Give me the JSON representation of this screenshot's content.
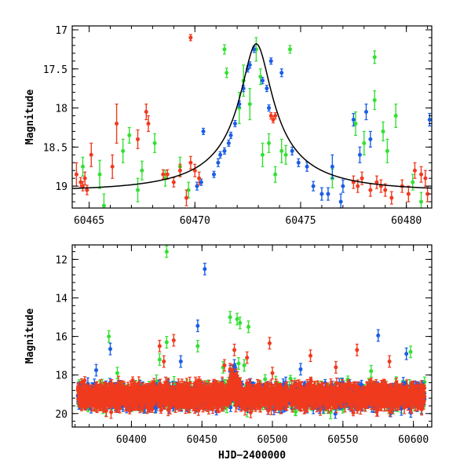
{
  "colors": {
    "green": "#33e033",
    "blue": "#1a5ee6",
    "red": "#f03a1e",
    "model": "#000000"
  },
  "chart_data": [
    {
      "type": "scatter",
      "panel": "top",
      "xlabel": "",
      "ylabel": "Magnitude",
      "xlim": [
        60464.2,
        60481.2
      ],
      "ylim": [
        19.28,
        16.95
      ],
      "y_inverted": true,
      "grid": false,
      "xticks": [
        60465,
        60470,
        60475,
        60480
      ],
      "xtick_labels": [
        "60465",
        "60470",
        "60475",
        "60480"
      ],
      "yticks": [
        17,
        17.5,
        18,
        18.5,
        19
      ],
      "ytick_labels": [
        "17",
        "17.5",
        "18",
        "18.5",
        "19"
      ],
      "model_curve": {
        "baseline": 19.06,
        "peak_mag": 17.18,
        "t0": 60472.9,
        "u0": 0.14,
        "tE": 5.2
      },
      "series": [
        {
          "color": "#33e033",
          "points": [
            [
              60464.7,
              18.75,
              0.12
            ],
            [
              60465.5,
              18.85,
              0.18
            ],
            [
              60465.7,
              19.25,
              0.15
            ],
            [
              60466.6,
              18.55,
              0.15
            ],
            [
              60467.3,
              19.05,
              0.15
            ],
            [
              60467.5,
              18.8,
              0.12
            ],
            [
              60468.1,
              18.45,
              0.12
            ],
            [
              60468.6,
              18.9,
              0.1
            ],
            [
              60469.3,
              18.75,
              0.12
            ],
            [
              60469.7,
              19.05,
              0.1
            ],
            [
              60472.1,
              18.0,
              0.2
            ],
            [
              60472.3,
              17.65,
              0.2
            ],
            [
              60472.6,
              17.95,
              0.2
            ],
            [
              60472.9,
              17.25,
              0.15
            ],
            [
              60473.1,
              17.6,
              0.1
            ],
            [
              60473.2,
              18.6,
              0.15
            ],
            [
              60473.5,
              18.45,
              0.12
            ],
            [
              60473.8,
              18.85,
              0.1
            ],
            [
              60474.1,
              18.55,
              0.15
            ],
            [
              60474.3,
              18.6,
              0.12
            ],
            [
              60474.5,
              17.25,
              0.05
            ],
            [
              60471.4,
              17.25,
              0.06
            ],
            [
              60471.5,
              17.55,
              0.06
            ],
            [
              60476.5,
              18.9,
              0.12
            ],
            [
              60477.6,
              18.2,
              0.15
            ],
            [
              60478.0,
              18.45,
              0.15
            ],
            [
              60478.5,
              17.35,
              0.08
            ],
            [
              60478.5,
              17.9,
              0.12
            ],
            [
              60478.9,
              18.3,
              0.12
            ],
            [
              60479.1,
              18.55,
              0.15
            ],
            [
              60479.5,
              18.1,
              0.15
            ],
            [
              60480.3,
              18.95,
              0.1
            ],
            [
              60480.7,
              19.2,
              0.12
            ],
            [
              60466.9,
              18.35,
              0.1
            ]
          ]
        },
        {
          "color": "#1a5ee6",
          "points": [
            [
              60470.1,
              19.0,
              0.05
            ],
            [
              60470.3,
              18.95,
              0.04
            ],
            [
              60470.4,
              18.3,
              0.04
            ],
            [
              60470.9,
              18.85,
              0.04
            ],
            [
              60471.2,
              18.6,
              0.04
            ],
            [
              60471.4,
              18.55,
              0.04
            ],
            [
              60471.6,
              18.45,
              0.04
            ],
            [
              60471.7,
              18.35,
              0.04
            ],
            [
              60471.9,
              18.2,
              0.04
            ],
            [
              60472.1,
              17.95,
              0.04
            ],
            [
              60472.3,
              17.75,
              0.04
            ],
            [
              60472.5,
              17.5,
              0.04
            ],
            [
              60472.6,
              17.45,
              0.04
            ],
            [
              60472.8,
              17.25,
              0.04
            ],
            [
              60473.2,
              17.65,
              0.04
            ],
            [
              60473.4,
              17.75,
              0.04
            ],
            [
              60473.6,
              17.4,
              0.04
            ],
            [
              60473.5,
              18.0,
              0.04
            ],
            [
              60474.1,
              17.55,
              0.05
            ],
            [
              60474.6,
              18.55,
              0.05
            ],
            [
              60474.9,
              18.7,
              0.05
            ],
            [
              60475.3,
              18.75,
              0.06
            ],
            [
              60475.6,
              19.0,
              0.06
            ],
            [
              60476.0,
              19.1,
              0.08
            ],
            [
              60476.3,
              19.1,
              0.08
            ],
            [
              60476.5,
              18.75,
              0.15
            ],
            [
              60477.0,
              19.0,
              0.08
            ],
            [
              60477.5,
              18.15,
              0.08
            ],
            [
              60477.8,
              18.6,
              0.1
            ],
            [
              60478.1,
              18.05,
              0.1
            ],
            [
              60478.3,
              18.4,
              0.1
            ],
            [
              60476.9,
              19.2,
              0.1
            ],
            [
              60481.1,
              18.15,
              0.08
            ],
            [
              60471.1,
              18.7,
              0.05
            ]
          ]
        },
        {
          "color": "#f03a1e",
          "points": [
            [
              60464.4,
              18.85,
              0.15
            ],
            [
              60464.6,
              18.95,
              0.06
            ],
            [
              60464.7,
              19.0,
              0.06
            ],
            [
              60464.8,
              18.9,
              0.08
            ],
            [
              60464.9,
              19.05,
              0.06
            ],
            [
              60465.1,
              18.6,
              0.15
            ],
            [
              60466.1,
              18.75,
              0.15
            ],
            [
              60466.3,
              18.2,
              0.25
            ],
            [
              60467.3,
              18.4,
              0.12
            ],
            [
              60467.7,
              18.05,
              0.1
            ],
            [
              60467.8,
              18.2,
              0.1
            ],
            [
              60468.5,
              18.85,
              0.06
            ],
            [
              60468.7,
              18.85,
              0.06
            ],
            [
              60469.0,
              18.95,
              0.06
            ],
            [
              60469.3,
              18.8,
              0.08
            ],
            [
              60469.6,
              19.15,
              0.1
            ],
            [
              60469.8,
              18.7,
              0.08
            ],
            [
              60470.0,
              18.8,
              0.08
            ],
            [
              60470.2,
              18.9,
              0.08
            ],
            [
              60469.8,
              17.1,
              0.04
            ],
            [
              60473.6,
              18.1,
              0.04
            ],
            [
              60473.7,
              18.15,
              0.04
            ],
            [
              60473.8,
              18.1,
              0.04
            ],
            [
              60477.5,
              18.95,
              0.08
            ],
            [
              60477.7,
              19.0,
              0.08
            ],
            [
              60477.9,
              18.9,
              0.08
            ],
            [
              60478.3,
              19.05,
              0.08
            ],
            [
              60478.6,
              18.95,
              0.08
            ],
            [
              60478.8,
              19.0,
              0.08
            ],
            [
              60479.0,
              19.05,
              0.08
            ],
            [
              60479.3,
              19.15,
              0.08
            ],
            [
              60479.8,
              19.0,
              0.08
            ],
            [
              60480.1,
              19.1,
              0.1
            ],
            [
              60480.4,
              18.8,
              0.1
            ],
            [
              60480.7,
              18.85,
              0.1
            ],
            [
              60480.9,
              18.9,
              0.1
            ],
            [
              60481.0,
              19.1,
              0.1
            ]
          ]
        }
      ]
    },
    {
      "type": "scatter",
      "panel": "bottom",
      "xlabel": "HJD−2400000",
      "ylabel": "Magnitude",
      "xlim": [
        60358,
        60613
      ],
      "ylim": [
        20.7,
        11.25
      ],
      "y_inverted": true,
      "grid": false,
      "xticks": [
        60400,
        60450,
        60500,
        60550,
        60600
      ],
      "xtick_labels": [
        "60400",
        "60450",
        "60500",
        "60550",
        "60600"
      ],
      "yticks": [
        12,
        14,
        16,
        18,
        20
      ],
      "ytick_labels": [
        "12",
        "14",
        "16",
        "18",
        "20"
      ],
      "baseline": {
        "center": 19.1,
        "spread": 0.5,
        "density": 8
      },
      "series": [
        {
          "color": "#33e033",
          "outliers": [
            [
              60425,
              11.6
            ],
            [
              60470,
              15.0
            ],
            [
              60475,
              15.1
            ],
            [
              60477,
              15.3
            ],
            [
              60483,
              15.5
            ],
            [
              60384,
              16.0
            ],
            [
              60425,
              16.3
            ],
            [
              60447,
              16.5
            ],
            [
              60570,
              17.8
            ],
            [
              60598,
              16.8
            ],
            [
              60465,
              17.6
            ],
            [
              60476,
              17.4
            ],
            [
              60480,
              17.5
            ],
            [
              60390,
              17.9
            ],
            [
              60420,
              17.2
            ]
          ],
          "coverage": [
            60362,
            60608
          ]
        },
        {
          "color": "#1a5ee6",
          "outliers": [
            [
              60452,
              12.5
            ],
            [
              60447,
              15.45
            ],
            [
              60575,
              15.95
            ],
            [
              60385,
              16.65
            ],
            [
              60595,
              16.9
            ],
            [
              60473,
              17.5
            ],
            [
              60435,
              17.3
            ],
            [
              60470,
              17.8
            ],
            [
              60375,
              17.75
            ],
            [
              60520,
              17.7
            ]
          ],
          "coverage": [
            60362,
            60608
          ]
        },
        {
          "color": "#f03a1e",
          "outliers": [
            [
              60430,
              16.2
            ],
            [
              60498,
              16.35
            ],
            [
              60420,
              16.5
            ],
            [
              60423,
              17.3
            ],
            [
              60473,
              16.7
            ],
            [
              60482,
              17.1
            ],
            [
              60527,
              17.0
            ],
            [
              60560,
              16.7
            ],
            [
              60583,
              17.3
            ],
            [
              60466,
              17.5
            ],
            [
              60545,
              17.6
            ],
            [
              60500,
              17.9
            ],
            [
              60470,
              17.7
            ]
          ],
          "coverage": [
            60362,
            60608
          ]
        }
      ]
    }
  ]
}
